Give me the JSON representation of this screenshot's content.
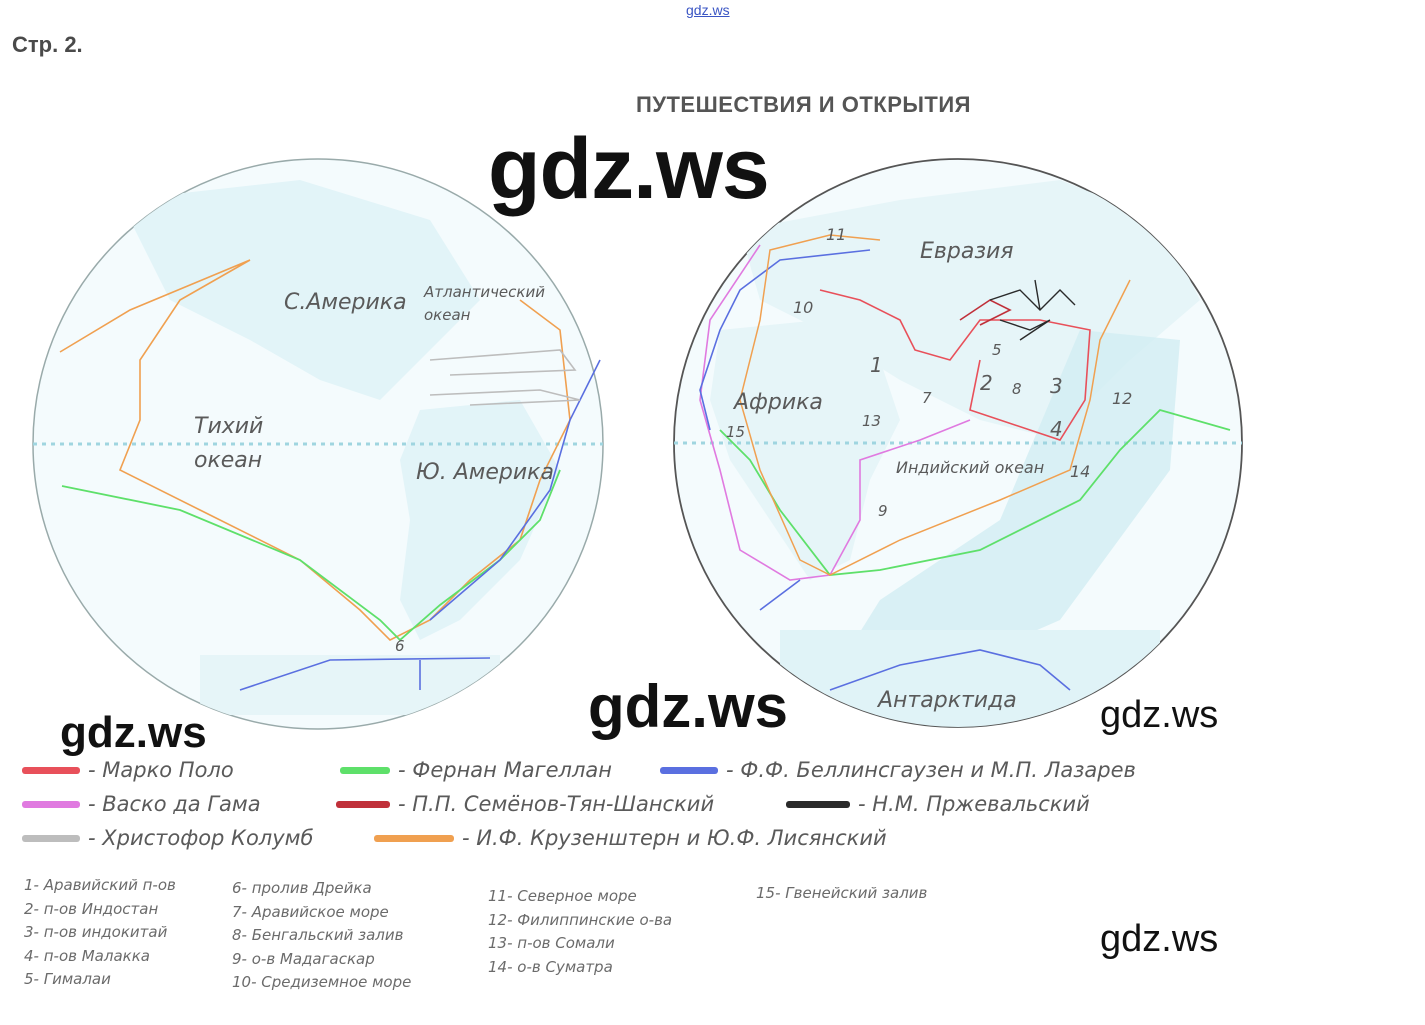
{
  "header": {
    "page_label": "Стр. 2.",
    "top_watermark": "gdz.ws",
    "map_title": "ПУТЕШЕСТВИЯ И ОТКРЫТИЯ"
  },
  "watermarks": {
    "big": "gdz.ws",
    "middle": "gdz.ws",
    "left": "gdz.ws",
    "right_top": "gdz.ws",
    "right_bottom": "gdz.ws"
  },
  "western_hemisphere": {
    "labels": {
      "north_america": "С.Америка",
      "atlantic_1": "Атлантический",
      "atlantic_2": "океан",
      "pacific_1": "Тихий",
      "pacific_2": "океан",
      "south_america": "Ю. Америка",
      "num_6": "6"
    }
  },
  "eastern_hemisphere": {
    "labels": {
      "eurasia": "Евразия",
      "africa": "Африка",
      "indian_ocean": "Индийский океан",
      "antarctica": "Антарктида",
      "n1": "1",
      "n2": "2",
      "n3": "3",
      "n4": "4",
      "n5": "5",
      "n7": "7",
      "n8": "8",
      "n9": "9",
      "n10": "10",
      "n11": "11",
      "n12": "12",
      "n13": "13",
      "n14": "14",
      "n15": "15"
    }
  },
  "legend": [
    {
      "color": "#e8505a",
      "label": "- Марко Поло"
    },
    {
      "color": "#5ee06a",
      "label": "- Фернан Магеллан"
    },
    {
      "color": "#5a6fe0",
      "label": "- Ф.Ф. Беллинсгаузен и М.П. Лазарев"
    },
    {
      "color": "#e07ae0",
      "label": "- Васко да Гама"
    },
    {
      "color": "#c0303a",
      "label": "- П.П. Семёнов-Тян-Шанский"
    },
    {
      "color": "#2a2a2a",
      "label": "- Н.М. Пржевальский"
    },
    {
      "color": "#bdbdbd",
      "label": "- Христофор Колумб"
    },
    {
      "color": "#f0a050",
      "label": "- И.Ф. Крузенштерн и Ю.Ф. Лисянский"
    }
  ],
  "key": {
    "col1": [
      "1- Аравийский п-ов",
      "2- п-ов Индостан",
      "3- п-ов индокитай",
      "4- п-ов Малакка",
      "5- Гималаи"
    ],
    "col2": [
      "6- пролив Дрейка",
      "7- Аравийское море",
      "8- Бенгальский залив",
      "9- о-в Мадагаскар",
      "10- Средиземное море"
    ],
    "col3": [
      "11- Северное море",
      "12- Филиппинские о-ва",
      "13- п-ов Сомали",
      "14- о-в Суматра"
    ],
    "col4": [
      "15- Гвенейский залив"
    ]
  }
}
